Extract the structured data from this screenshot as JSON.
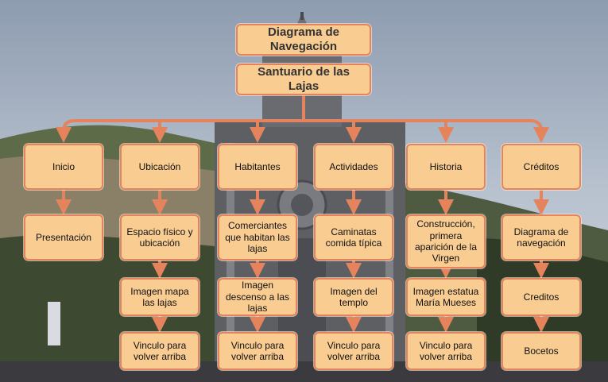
{
  "diagram": {
    "title": "Diagrama de Navegación",
    "root": "Santuario de las Lajas",
    "columns": [
      {
        "header": "Inicio",
        "children": [
          "Presentación"
        ]
      },
      {
        "header": "Ubicación",
        "children": [
          "Espacio físico y ubicación",
          "Imagen mapa las lajas",
          "Vinculo para volver arriba"
        ]
      },
      {
        "header": "Habitantes",
        "children": [
          "Comerciantes que habitan las lajas",
          "Imagen descenso a las lajas",
          "Vinculo para volver arriba"
        ]
      },
      {
        "header": "Actividades",
        "children": [
          "Caminatas comida típica",
          "Imagen del templo",
          "Vinculo para volver arriba"
        ]
      },
      {
        "header": "Historia",
        "children": [
          "Construcción, primera aparición de la Virgen",
          "Imagen estatua María Mueses",
          "Vinculo para volver arriba"
        ]
      },
      {
        "header": "Créditos",
        "children": [
          "Diagrama de navegación",
          "Creditos",
          "Bocetos"
        ]
      }
    ]
  },
  "colors": {
    "box_fill": "#f9cc92",
    "box_border": "#e5835c",
    "arrow": "#e5835c"
  }
}
